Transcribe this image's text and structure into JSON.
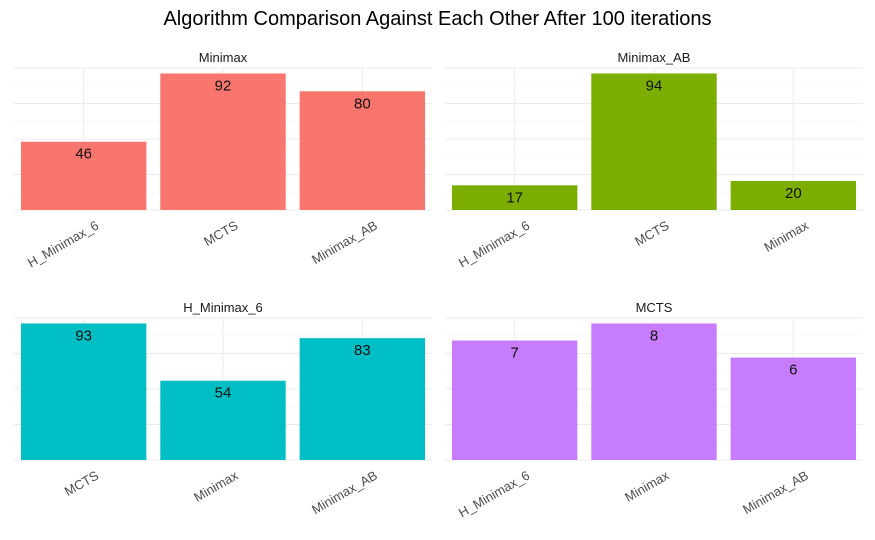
{
  "title": "Algorithm Comparison Against Each Other After 100 iterations",
  "chart_data": [
    {
      "type": "bar",
      "title": "Minimax",
      "categories": [
        "H_Minimax_6",
        "MCTS",
        "Minimax_AB"
      ],
      "values": [
        46,
        92,
        80
      ],
      "color": "#F8766D"
    },
    {
      "type": "bar",
      "title": "Minimax_AB",
      "categories": [
        "H_Minimax_6",
        "MCTS",
        "Minimax"
      ],
      "values": [
        17,
        94,
        20
      ],
      "color": "#7CAE00"
    },
    {
      "type": "bar",
      "title": "H_Minimax_6",
      "categories": [
        "MCTS",
        "Minimax",
        "Minimax_AB"
      ],
      "values": [
        93,
        54,
        83
      ],
      "color": "#00BFC4"
    },
    {
      "type": "bar",
      "title": "MCTS",
      "categories": [
        "H_Minimax_6",
        "Minimax",
        "Minimax_AB"
      ],
      "values": [
        7,
        8,
        6
      ],
      "color": "#C77CFF"
    }
  ]
}
